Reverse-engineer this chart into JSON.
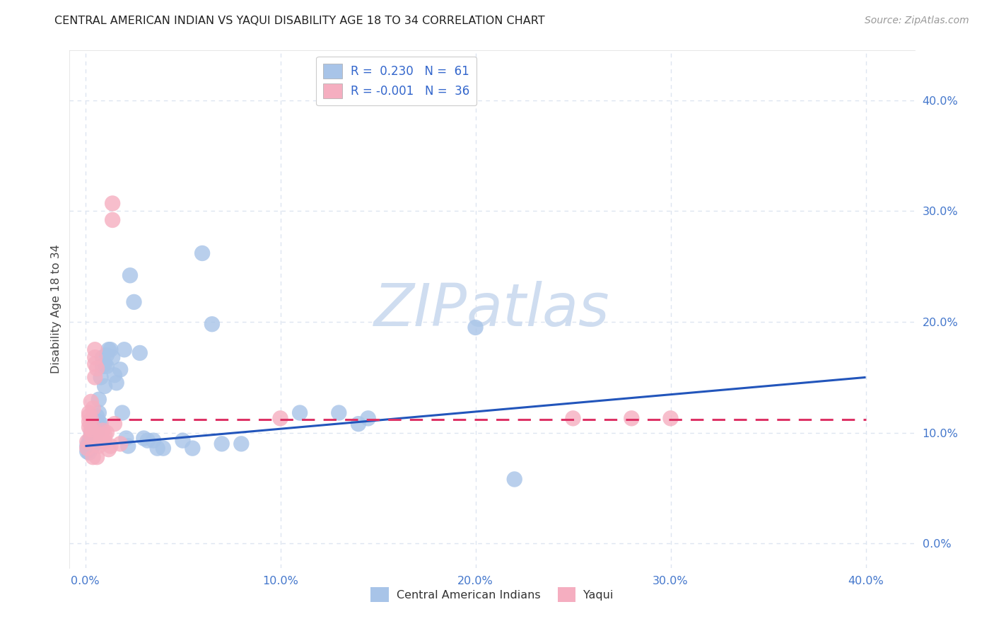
{
  "title": "CENTRAL AMERICAN INDIAN VS YAQUI DISABILITY AGE 18 TO 34 CORRELATION CHART",
  "source": "Source: ZipAtlas.com",
  "xlabel_vals": [
    0.0,
    0.1,
    0.2,
    0.3,
    0.4
  ],
  "ylabel_vals": [
    0.0,
    0.1,
    0.2,
    0.3,
    0.4
  ],
  "xlim": [
    -0.008,
    0.425
  ],
  "ylim": [
    -0.022,
    0.445
  ],
  "blue_R": "0.230",
  "blue_N": "61",
  "pink_R": "-0.001",
  "pink_N": "36",
  "blue_color": "#a8c4e8",
  "pink_color": "#f5aec0",
  "blue_line_color": "#2255bb",
  "pink_line_color": "#dd3366",
  "watermark_color": "#cfddf0",
  "title_color": "#222222",
  "axis_color": "#4477cc",
  "legend_R_color": "#3366cc",
  "grid_color": "#dde5f0",
  "blue_scatter": [
    [
      0.001,
      0.083
    ],
    [
      0.001,
      0.088
    ],
    [
      0.002,
      0.082
    ],
    [
      0.002,
      0.088
    ],
    [
      0.002,
      0.093
    ],
    [
      0.003,
      0.086
    ],
    [
      0.003,
      0.09
    ],
    [
      0.003,
      0.095
    ],
    [
      0.003,
      0.1
    ],
    [
      0.004,
      0.088
    ],
    [
      0.004,
      0.093
    ],
    [
      0.004,
      0.098
    ],
    [
      0.004,
      0.102
    ],
    [
      0.005,
      0.09
    ],
    [
      0.005,
      0.095
    ],
    [
      0.005,
      0.1
    ],
    [
      0.005,
      0.105
    ],
    [
      0.006,
      0.1
    ],
    [
      0.006,
      0.108
    ],
    [
      0.006,
      0.115
    ],
    [
      0.007,
      0.11
    ],
    [
      0.007,
      0.118
    ],
    [
      0.007,
      0.13
    ],
    [
      0.008,
      0.108
    ],
    [
      0.008,
      0.15
    ],
    [
      0.009,
      0.16
    ],
    [
      0.009,
      0.168
    ],
    [
      0.01,
      0.142
    ],
    [
      0.01,
      0.162
    ],
    [
      0.011,
      0.17
    ],
    [
      0.011,
      0.16
    ],
    [
      0.012,
      0.175
    ],
    [
      0.013,
      0.175
    ],
    [
      0.014,
      0.168
    ],
    [
      0.015,
      0.152
    ],
    [
      0.016,
      0.145
    ],
    [
      0.018,
      0.157
    ],
    [
      0.019,
      0.118
    ],
    [
      0.02,
      0.175
    ],
    [
      0.021,
      0.095
    ],
    [
      0.022,
      0.088
    ],
    [
      0.023,
      0.242
    ],
    [
      0.025,
      0.218
    ],
    [
      0.028,
      0.172
    ],
    [
      0.03,
      0.095
    ],
    [
      0.032,
      0.093
    ],
    [
      0.035,
      0.093
    ],
    [
      0.037,
      0.086
    ],
    [
      0.04,
      0.086
    ],
    [
      0.05,
      0.093
    ],
    [
      0.055,
      0.086
    ],
    [
      0.06,
      0.262
    ],
    [
      0.065,
      0.198
    ],
    [
      0.07,
      0.09
    ],
    [
      0.08,
      0.09
    ],
    [
      0.11,
      0.118
    ],
    [
      0.13,
      0.118
    ],
    [
      0.14,
      0.108
    ],
    [
      0.145,
      0.113
    ],
    [
      0.2,
      0.195
    ],
    [
      0.22,
      0.058
    ]
  ],
  "pink_scatter": [
    [
      0.001,
      0.086
    ],
    [
      0.001,
      0.092
    ],
    [
      0.002,
      0.105
    ],
    [
      0.002,
      0.11
    ],
    [
      0.002,
      0.118
    ],
    [
      0.002,
      0.115
    ],
    [
      0.003,
      0.128
    ],
    [
      0.003,
      0.112
    ],
    [
      0.003,
      0.098
    ],
    [
      0.003,
      0.103
    ],
    [
      0.004,
      0.122
    ],
    [
      0.004,
      0.105
    ],
    [
      0.004,
      0.078
    ],
    [
      0.005,
      0.15
    ],
    [
      0.005,
      0.162
    ],
    [
      0.005,
      0.168
    ],
    [
      0.005,
      0.175
    ],
    [
      0.006,
      0.158
    ],
    [
      0.006,
      0.078
    ],
    [
      0.007,
      0.088
    ],
    [
      0.008,
      0.093
    ],
    [
      0.008,
      0.098
    ],
    [
      0.009,
      0.102
    ],
    [
      0.01,
      0.098
    ],
    [
      0.01,
      0.092
    ],
    [
      0.011,
      0.1
    ],
    [
      0.012,
      0.085
    ],
    [
      0.013,
      0.088
    ],
    [
      0.014,
      0.307
    ],
    [
      0.014,
      0.292
    ],
    [
      0.015,
      0.108
    ],
    [
      0.018,
      0.09
    ],
    [
      0.1,
      0.113
    ],
    [
      0.25,
      0.113
    ],
    [
      0.28,
      0.113
    ],
    [
      0.3,
      0.113
    ]
  ],
  "blue_line_x": [
    0.0,
    0.4
  ],
  "blue_line_y": [
    0.088,
    0.15
  ],
  "pink_line_x": [
    0.0,
    0.4
  ],
  "pink_line_y": [
    0.112,
    0.112
  ]
}
